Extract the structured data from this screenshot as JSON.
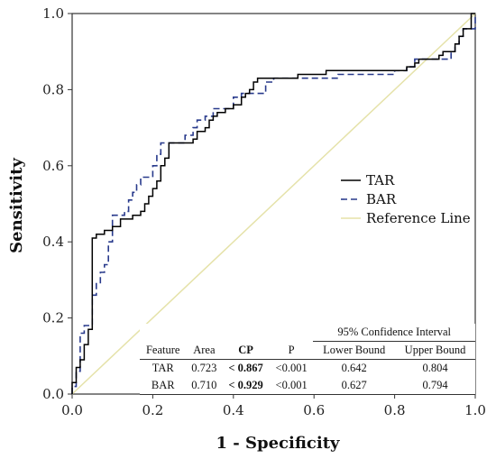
{
  "chart_data": {
    "type": "line",
    "xlabel": "1 - Specificity",
    "ylabel": "Sensitivity",
    "xlim": [
      0,
      1
    ],
    "ylim": [
      0,
      1
    ],
    "xticks": [
      "0.0",
      "0.2",
      "0.4",
      "0.6",
      "0.8",
      "1.0"
    ],
    "yticks": [
      "0.0",
      "0.2",
      "0.4",
      "0.6",
      "0.8",
      "1.0"
    ],
    "grid": false,
    "legend_position": "center-right",
    "series": [
      {
        "name": "TAR",
        "color": "#000000",
        "style": "solid",
        "points": [
          [
            0,
            0
          ],
          [
            0,
            0.03
          ],
          [
            0.01,
            0.03
          ],
          [
            0.01,
            0.07
          ],
          [
            0.02,
            0.07
          ],
          [
            0.02,
            0.09
          ],
          [
            0.03,
            0.09
          ],
          [
            0.03,
            0.13
          ],
          [
            0.04,
            0.13
          ],
          [
            0.04,
            0.17
          ],
          [
            0.05,
            0.17
          ],
          [
            0.05,
            0.41
          ],
          [
            0.06,
            0.41
          ],
          [
            0.06,
            0.42
          ],
          [
            0.08,
            0.42
          ],
          [
            0.08,
            0.43
          ],
          [
            0.1,
            0.43
          ],
          [
            0.1,
            0.44
          ],
          [
            0.12,
            0.44
          ],
          [
            0.12,
            0.46
          ],
          [
            0.15,
            0.46
          ],
          [
            0.15,
            0.47
          ],
          [
            0.17,
            0.47
          ],
          [
            0.17,
            0.48
          ],
          [
            0.18,
            0.48
          ],
          [
            0.18,
            0.5
          ],
          [
            0.19,
            0.5
          ],
          [
            0.19,
            0.52
          ],
          [
            0.2,
            0.52
          ],
          [
            0.2,
            0.54
          ],
          [
            0.21,
            0.54
          ],
          [
            0.21,
            0.56
          ],
          [
            0.22,
            0.56
          ],
          [
            0.22,
            0.6
          ],
          [
            0.23,
            0.6
          ],
          [
            0.23,
            0.62
          ],
          [
            0.24,
            0.62
          ],
          [
            0.24,
            0.66
          ],
          [
            0.3,
            0.66
          ],
          [
            0.3,
            0.67
          ],
          [
            0.31,
            0.67
          ],
          [
            0.31,
            0.69
          ],
          [
            0.33,
            0.69
          ],
          [
            0.33,
            0.7
          ],
          [
            0.34,
            0.7
          ],
          [
            0.34,
            0.72
          ],
          [
            0.35,
            0.72
          ],
          [
            0.35,
            0.73
          ],
          [
            0.36,
            0.73
          ],
          [
            0.36,
            0.74
          ],
          [
            0.38,
            0.74
          ],
          [
            0.38,
            0.75
          ],
          [
            0.4,
            0.75
          ],
          [
            0.4,
            0.76
          ],
          [
            0.42,
            0.76
          ],
          [
            0.42,
            0.78
          ],
          [
            0.43,
            0.78
          ],
          [
            0.43,
            0.79
          ],
          [
            0.44,
            0.79
          ],
          [
            0.44,
            0.8
          ],
          [
            0.45,
            0.8
          ],
          [
            0.45,
            0.82
          ],
          [
            0.46,
            0.82
          ],
          [
            0.46,
            0.83
          ],
          [
            0.56,
            0.83
          ],
          [
            0.56,
            0.84
          ],
          [
            0.63,
            0.84
          ],
          [
            0.63,
            0.85
          ],
          [
            0.83,
            0.85
          ],
          [
            0.83,
            0.86
          ],
          [
            0.85,
            0.86
          ],
          [
            0.85,
            0.87
          ],
          [
            0.86,
            0.87
          ],
          [
            0.86,
            0.88
          ],
          [
            0.91,
            0.88
          ],
          [
            0.91,
            0.89
          ],
          [
            0.92,
            0.89
          ],
          [
            0.92,
            0.9
          ],
          [
            0.95,
            0.9
          ],
          [
            0.95,
            0.92
          ],
          [
            0.96,
            0.92
          ],
          [
            0.96,
            0.94
          ],
          [
            0.97,
            0.94
          ],
          [
            0.97,
            0.96
          ],
          [
            0.99,
            0.96
          ],
          [
            0.99,
            1
          ],
          [
            1,
            1
          ]
        ]
      },
      {
        "name": "BAR",
        "color": "#283a8c",
        "style": "dashed",
        "points": [
          [
            0,
            0
          ],
          [
            0,
            0.02
          ],
          [
            0.01,
            0.02
          ],
          [
            0.01,
            0.06
          ],
          [
            0.02,
            0.06
          ],
          [
            0.02,
            0.16
          ],
          [
            0.03,
            0.16
          ],
          [
            0.03,
            0.18
          ],
          [
            0.05,
            0.18
          ],
          [
            0.05,
            0.26
          ],
          [
            0.06,
            0.26
          ],
          [
            0.06,
            0.29
          ],
          [
            0.07,
            0.29
          ],
          [
            0.07,
            0.32
          ],
          [
            0.08,
            0.32
          ],
          [
            0.08,
            0.34
          ],
          [
            0.09,
            0.34
          ],
          [
            0.09,
            0.4
          ],
          [
            0.1,
            0.4
          ],
          [
            0.1,
            0.47
          ],
          [
            0.13,
            0.47
          ],
          [
            0.13,
            0.48
          ],
          [
            0.14,
            0.48
          ],
          [
            0.14,
            0.51
          ],
          [
            0.15,
            0.51
          ],
          [
            0.15,
            0.53
          ],
          [
            0.16,
            0.53
          ],
          [
            0.16,
            0.55
          ],
          [
            0.17,
            0.55
          ],
          [
            0.17,
            0.57
          ],
          [
            0.2,
            0.57
          ],
          [
            0.2,
            0.6
          ],
          [
            0.21,
            0.6
          ],
          [
            0.21,
            0.63
          ],
          [
            0.22,
            0.63
          ],
          [
            0.22,
            0.66
          ],
          [
            0.28,
            0.66
          ],
          [
            0.28,
            0.68
          ],
          [
            0.3,
            0.68
          ],
          [
            0.3,
            0.7
          ],
          [
            0.31,
            0.7
          ],
          [
            0.31,
            0.72
          ],
          [
            0.33,
            0.72
          ],
          [
            0.33,
            0.73
          ],
          [
            0.35,
            0.73
          ],
          [
            0.35,
            0.75
          ],
          [
            0.4,
            0.75
          ],
          [
            0.4,
            0.78
          ],
          [
            0.42,
            0.78
          ],
          [
            0.42,
            0.79
          ],
          [
            0.48,
            0.79
          ],
          [
            0.48,
            0.82
          ],
          [
            0.5,
            0.82
          ],
          [
            0.5,
            0.83
          ],
          [
            0.66,
            0.83
          ],
          [
            0.66,
            0.84
          ],
          [
            0.8,
            0.84
          ],
          [
            0.8,
            0.85
          ],
          [
            0.83,
            0.85
          ],
          [
            0.83,
            0.86
          ],
          [
            0.85,
            0.86
          ],
          [
            0.85,
            0.88
          ],
          [
            0.94,
            0.88
          ],
          [
            0.94,
            0.9
          ],
          [
            0.95,
            0.9
          ],
          [
            0.95,
            0.92
          ],
          [
            0.96,
            0.92
          ],
          [
            0.96,
            0.94
          ],
          [
            0.97,
            0.94
          ],
          [
            0.97,
            0.96
          ],
          [
            1,
            0.96
          ],
          [
            1,
            1
          ]
        ]
      },
      {
        "name": "Reference Line",
        "color": "#e5e2a9",
        "style": "solid",
        "points": [
          [
            0,
            0
          ],
          [
            1,
            1
          ]
        ]
      }
    ],
    "table": {
      "group_header": "95% Confidence Interval",
      "columns": [
        "Feature",
        "Area",
        "CP",
        "P",
        "Lower Bound",
        "Upper Bound"
      ],
      "rows": [
        [
          "TAR",
          "0.723",
          "< 0.867",
          "<0.001",
          "0.642",
          "0.804"
        ],
        [
          "BAR",
          "0.710",
          "< 0.929",
          "<0.001",
          "0.627",
          "0.794"
        ]
      ]
    }
  }
}
